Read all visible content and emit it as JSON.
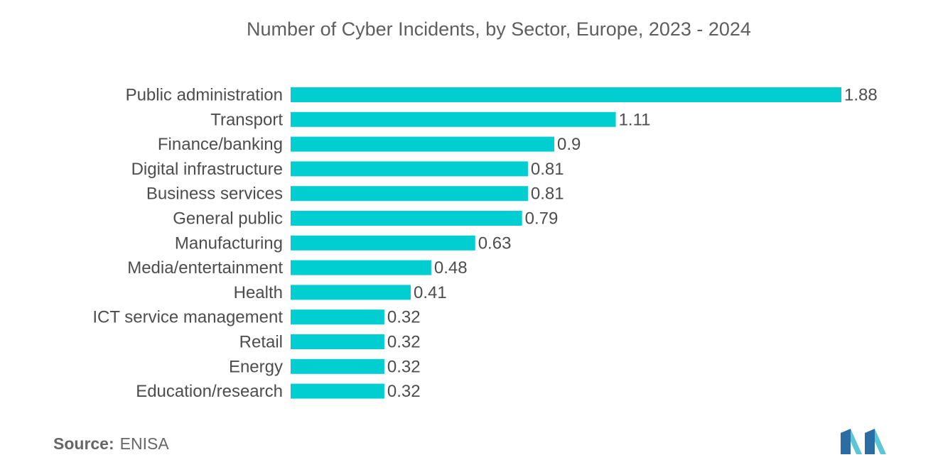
{
  "colors": {
    "bar": "#00CED1",
    "logo_dark": "#2b6ca3",
    "logo_light": "#5bc6d6"
  },
  "source": {
    "label": "Source:",
    "value": "ENISA"
  },
  "logo_icon": "mordor-intelligence-logo-icon",
  "chart_data": {
    "type": "bar",
    "orientation": "horizontal",
    "title": "Number of Cyber Incidents, by Sector, Europe, 2023 - 2024",
    "xlabel": "",
    "ylabel": "",
    "xlim": [
      0,
      1.88
    ],
    "grid": false,
    "legend": "none",
    "categories": [
      "Public administration",
      "Transport",
      "Finance/banking",
      "Digital infrastructure",
      "Business services",
      "General public",
      "Manufacturing",
      "Media/entertainment",
      "Health",
      "ICT service management",
      "Retail",
      "Energy",
      "Education/research"
    ],
    "values": [
      1.88,
      1.11,
      0.9,
      0.81,
      0.81,
      0.79,
      0.63,
      0.48,
      0.41,
      0.32,
      0.32,
      0.32,
      0.32
    ],
    "value_labels": [
      "1.88",
      "1.11",
      "0.9",
      "0.81",
      "0.81",
      "0.79",
      "0.63",
      "0.48",
      "0.41",
      "0.32",
      "0.32",
      "0.32",
      "0.32"
    ]
  }
}
